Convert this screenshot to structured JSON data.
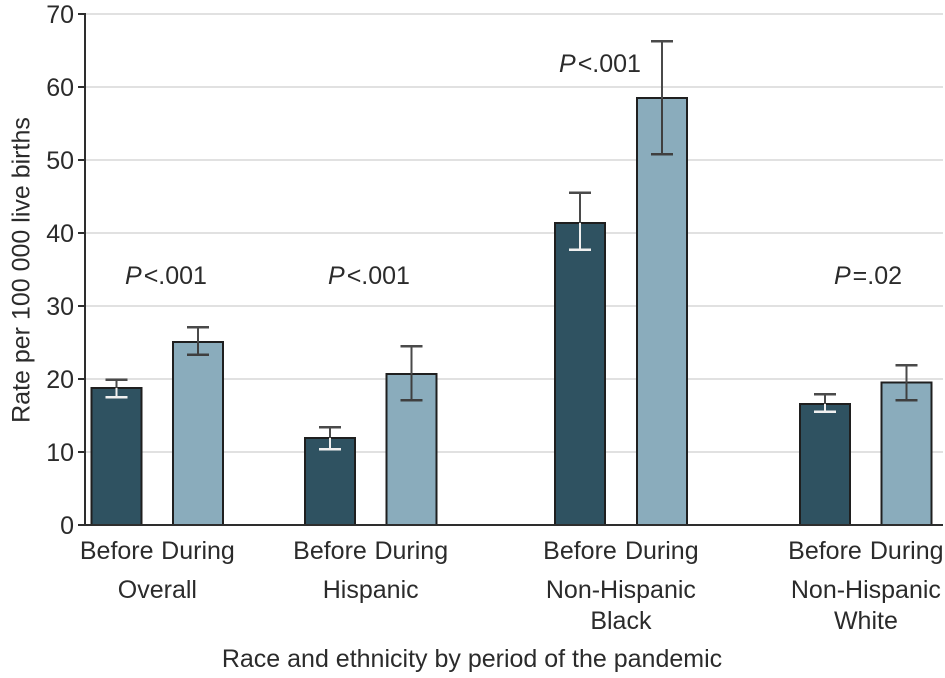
{
  "chart_data": {
    "type": "bar",
    "title": "",
    "ylabel": "Rate per 100 000 live births",
    "xlabel": "Race and ethnicity by period of the pandemic",
    "ylim": [
      0,
      70
    ],
    "yticks": [
      0,
      10,
      20,
      30,
      40,
      50,
      60,
      70
    ],
    "grid": true,
    "legend_position": "none",
    "bar_series": [
      "Before",
      "During"
    ],
    "colors": {
      "before_bar": "#2f5261",
      "during_bar": "#8aacbc",
      "bar_border": "#1f1f1f",
      "gridline": "#e1e1e1",
      "axis": "#2e2e2e",
      "text": "#2b2b2b",
      "error_bar": "#4a4a4a",
      "error_bar_on_dark": "#f0f0f0"
    },
    "groups": [
      {
        "label_lines": [
          "Overall"
        ],
        "p_label": "P<.001",
        "bars": [
          {
            "series": "Before",
            "value": 18.8,
            "ci_low": 17.5,
            "ci_high": 19.9
          },
          {
            "series": "During",
            "value": 25.1,
            "ci_low": 23.3,
            "ci_high": 27.1
          }
        ]
      },
      {
        "label_lines": [
          "Hispanic"
        ],
        "p_label": "P<.001",
        "bars": [
          {
            "series": "Before",
            "value": 11.9,
            "ci_low": 10.4,
            "ci_high": 13.4
          },
          {
            "series": "During",
            "value": 20.7,
            "ci_low": 17.1,
            "ci_high": 24.5
          }
        ]
      },
      {
        "label_lines": [
          "Non-Hispanic",
          "Black"
        ],
        "p_label": "P<.001",
        "bars": [
          {
            "series": "Before",
            "value": 41.4,
            "ci_low": 37.7,
            "ci_high": 45.5
          },
          {
            "series": "During",
            "value": 58.5,
            "ci_low": 50.8,
            "ci_high": 66.3
          }
        ]
      },
      {
        "label_lines": [
          "Non-Hispanic",
          "White"
        ],
        "p_label": "P=.02",
        "bars": [
          {
            "series": "Before",
            "value": 16.6,
            "ci_low": 15.5,
            "ci_high": 17.9
          },
          {
            "series": "During",
            "value": 19.5,
            "ci_low": 17.1,
            "ci_high": 21.9
          }
        ]
      }
    ]
  }
}
